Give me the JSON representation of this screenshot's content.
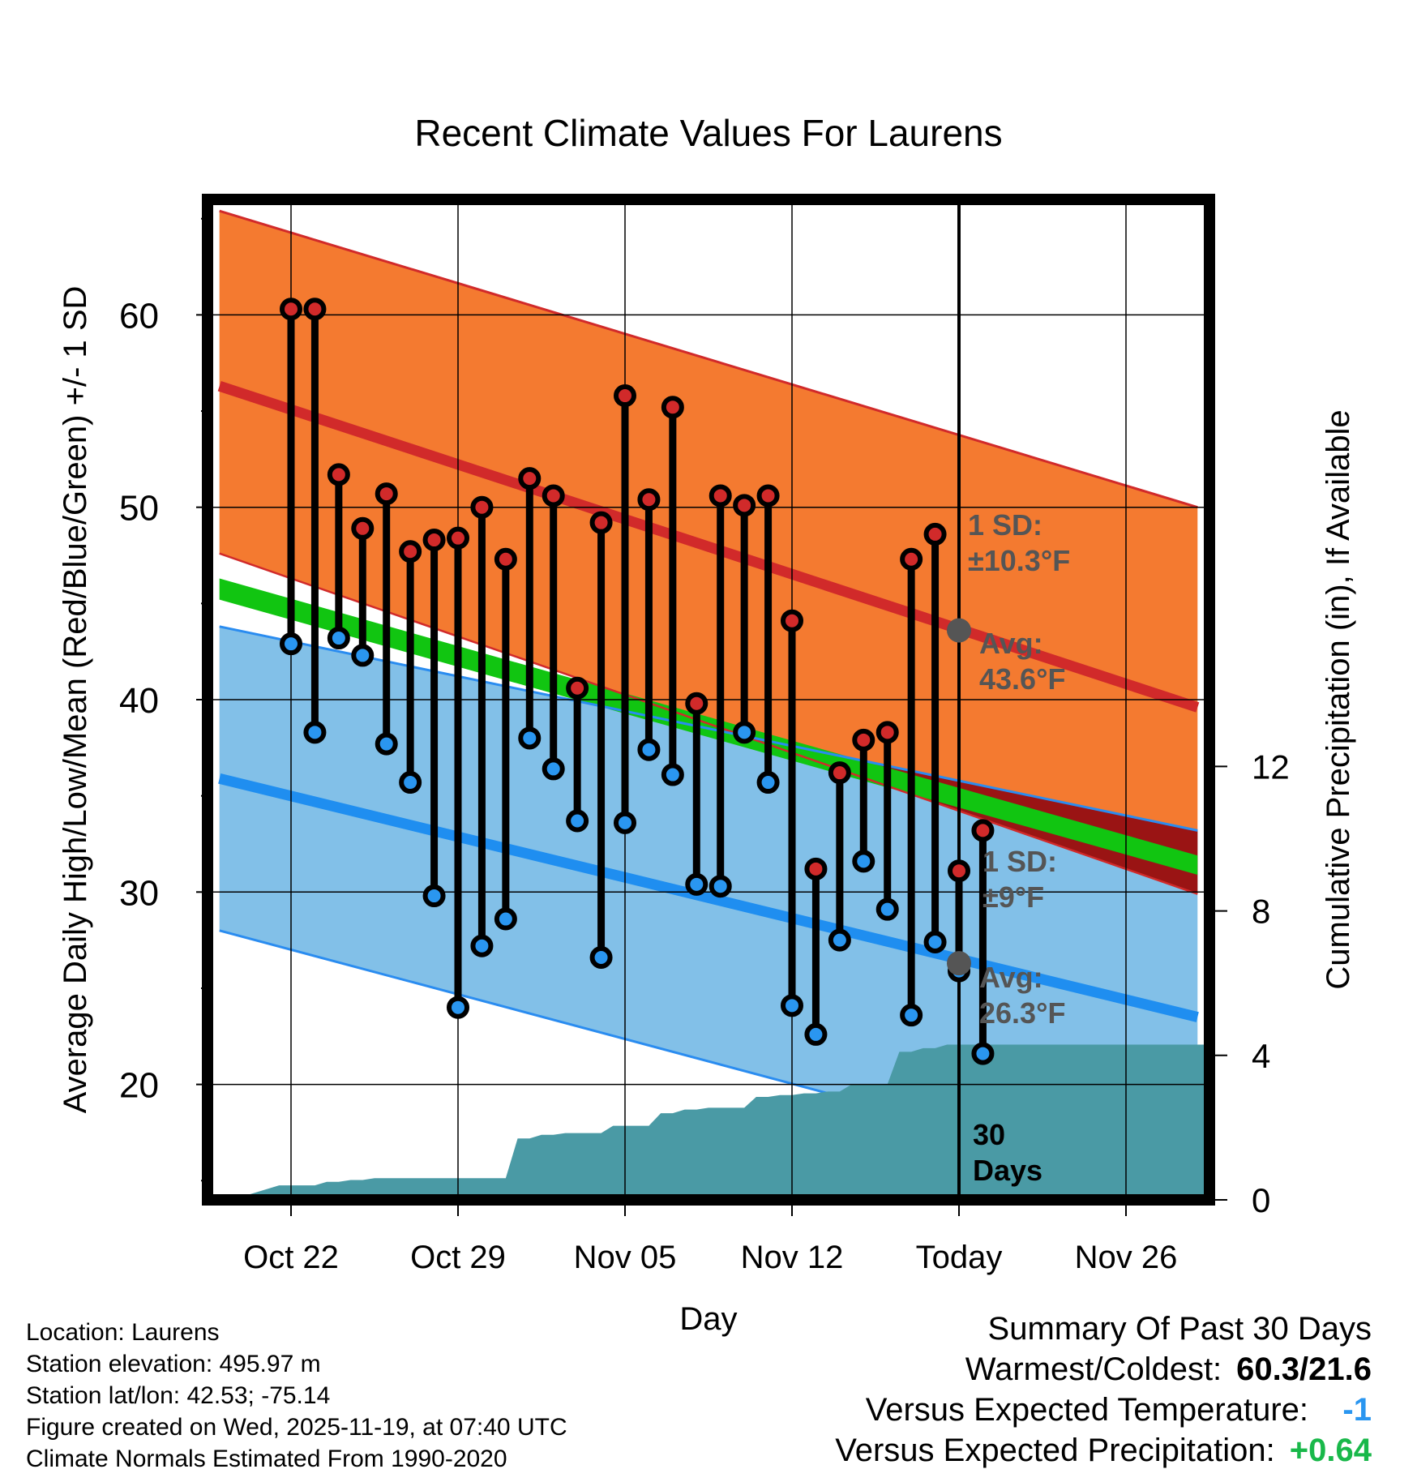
{
  "chart_data": {
    "type": "line",
    "title": "Recent Climate Values For Laurens",
    "xlabel": "Day",
    "ylabel": "Average Daily High/Low/Mean (Red/Blue/Green) +/- 1 SD",
    "y2label": "Cumulative Precipitation (in), If Available",
    "xlim": [
      -3.5,
      38.5
    ],
    "ylim": [
      14,
      66
    ],
    "y2lim": [
      0,
      27.7
    ],
    "x_tick_values": [
      0,
      7,
      14,
      21,
      28,
      35
    ],
    "x_tick_labels": [
      "Oct 22",
      "Oct 29",
      "Nov 05",
      "Nov 12",
      "Today",
      "Nov 26"
    ],
    "y_ticks": [
      20,
      30,
      40,
      50,
      60
    ],
    "y2_ticks": [
      0,
      4,
      8,
      12
    ],
    "grid": true,
    "today_index": 28,
    "days_label": "30\nDays",
    "normals": {
      "x": [
        -3,
        38
      ],
      "high_mean": [
        56.3,
        39.6
      ],
      "high_upper": [
        65.4,
        50.0
      ],
      "high_lower": [
        47.6,
        29.9
      ],
      "low_mean": [
        35.9,
        23.5
      ],
      "low_upper": [
        43.8,
        33.2
      ],
      "low_lower": [
        28.0,
        14.4
      ],
      "mean_upper": [
        46.3,
        31.9
      ],
      "mean_lower": [
        45.2,
        30.9
      ]
    },
    "series": [
      {
        "name": "Daily High",
        "color": "#d12a2a",
        "values": [
          60.3,
          60.3,
          51.7,
          48.9,
          50.7,
          47.7,
          48.3,
          48.4,
          50.0,
          47.3,
          51.5,
          50.6,
          40.6,
          49.2,
          55.8,
          50.4,
          55.2,
          39.8,
          50.6,
          50.1,
          50.6,
          44.1,
          31.2,
          36.2,
          37.9,
          38.3,
          47.3,
          48.6,
          31.1,
          33.2
        ]
      },
      {
        "name": "Daily Low",
        "color": "#2a96f0",
        "values": [
          42.9,
          38.3,
          43.2,
          42.3,
          37.7,
          35.7,
          29.8,
          24.0,
          27.2,
          28.6,
          38.0,
          36.4,
          33.7,
          26.6,
          33.6,
          37.4,
          36.1,
          30.4,
          30.3,
          38.3,
          35.7,
          24.1,
          22.6,
          27.5,
          31.6,
          29.1,
          23.6,
          27.4,
          25.9,
          21.6
        ]
      },
      {
        "name": "Cumulative Precipitation",
        "color": "#4a9aa5",
        "values": [
          0.4,
          0.4,
          0.5,
          0.55,
          0.6,
          0.6,
          0.6,
          0.6,
          0.6,
          0.6,
          1.7,
          1.8,
          1.85,
          1.85,
          2.05,
          2.05,
          2.4,
          2.5,
          2.55,
          2.55,
          2.85,
          2.9,
          2.95,
          3.0,
          3.2,
          3.2,
          4.1,
          4.2,
          4.3,
          4.3
        ]
      }
    ],
    "high_sd_label": "1 SD:\n±10.3°F",
    "high_avg_label": "Avg:\n43.6°F",
    "high_avg_value": 43.6,
    "low_sd_label": "1 SD:\n±9°F",
    "low_avg_label": "Avg:\n26.3°F",
    "low_avg_value": 26.3
  },
  "footer": {
    "location": "Location: Laurens",
    "elevation": "Station elevation: 495.97 m",
    "latlon": "Station lat/lon: 42.53; -75.14",
    "created": "Figure created on Wed, 2025-11-19, at 07:40 UTC",
    "normals": "Climate Normals Estimated From 1990-2020"
  },
  "summary": {
    "title": "Summary Of Past 30 Days",
    "warmest_coldest_label": "Warmest/Coldest:",
    "warmest_coldest_value": "60.3/21.6",
    "temp_label": "Versus Expected Temperature:",
    "temp_value": "-1",
    "temp_color": "#2a96f0",
    "precip_label": "Versus Expected Precipitation:",
    "precip_value": "+0.64",
    "precip_color": "#19b84a"
  },
  "colors": {
    "high_band": "#f47a30",
    "high_line": "#d12a2a",
    "low_band": "#82c0e8",
    "low_line": "#1f8ef0",
    "low_edge": "#2a8cf0",
    "mean_band": "#11c511",
    "overlap": "#9a1414",
    "precip": "#4a9aa5",
    "today_dot": "#555555"
  }
}
